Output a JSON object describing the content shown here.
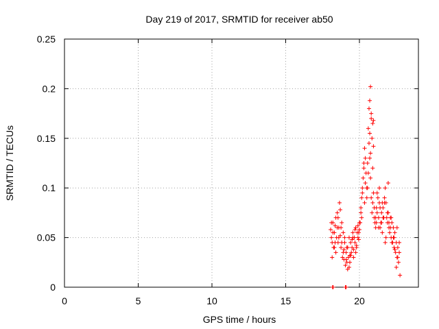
{
  "chart_data": {
    "type": "scatter",
    "title": "Day 219 of 2017, SRMTID for receiver ab50",
    "xlabel": "GPS time / hours",
    "ylabel": "SRMTID / TECUs",
    "xlim": [
      0,
      24
    ],
    "ylim": [
      0,
      0.25
    ],
    "xticks": [
      0,
      5,
      10,
      15,
      20
    ],
    "xtick_labels": [
      "0",
      "5",
      "10",
      "15",
      "20"
    ],
    "yticks": [
      0,
      0.05,
      0.1,
      0.15,
      0.2,
      0.25
    ],
    "ytick_labels": [
      "0",
      "0.05",
      "0.1",
      "0.15",
      "0.2",
      "0.25"
    ],
    "grid": true,
    "marker": "+",
    "color": "#ff0000",
    "series": [
      {
        "name": "SRMTID",
        "x": [
          18.05,
          18.1,
          18.15,
          18.2,
          18.25,
          18.3,
          18.35,
          18.4,
          18.45,
          18.5,
          18.55,
          18.6,
          18.65,
          18.7,
          18.75,
          18.8,
          18.85,
          18.9,
          18.95,
          19.0,
          19.05,
          19.1,
          19.15,
          19.2,
          19.25,
          19.3,
          19.35,
          19.4,
          19.45,
          19.5,
          19.55,
          19.6,
          19.65,
          19.7,
          19.75,
          19.8,
          19.85,
          19.9,
          19.95,
          20.0,
          20.05,
          20.1,
          20.15,
          20.2,
          20.25,
          20.3,
          20.35,
          20.4,
          20.45,
          20.5,
          20.55,
          20.6,
          20.65,
          20.7,
          20.75,
          20.8,
          20.85,
          20.9,
          20.95,
          21.0,
          21.05,
          21.1,
          21.15,
          21.2,
          21.25,
          21.3,
          21.35,
          21.4,
          21.45,
          21.5,
          21.55,
          21.6,
          21.65,
          21.7,
          21.75,
          21.8,
          21.85,
          21.9,
          21.95,
          22.0,
          22.05,
          22.1,
          22.15,
          22.2,
          22.25,
          22.3,
          22.35,
          22.4,
          22.45,
          22.5,
          22.55,
          22.6,
          22.65,
          22.7,
          18.1,
          18.2,
          18.3,
          18.4,
          18.5,
          18.6,
          18.7,
          18.8,
          18.9,
          19.0,
          19.1,
          19.2,
          19.3,
          19.4,
          19.5,
          19.6,
          19.7,
          19.8,
          19.9,
          20.0,
          20.1,
          20.2,
          20.3,
          20.4,
          20.5,
          20.6,
          20.7,
          20.8,
          20.9,
          21.0,
          21.1,
          21.2,
          21.3,
          21.4,
          21.5,
          21.6,
          21.7,
          21.8,
          21.9,
          22.0,
          22.1,
          22.2,
          22.3,
          22.4,
          22.5,
          22.6,
          22.7,
          18.15,
          18.35,
          18.55,
          18.75,
          18.95,
          19.15,
          19.35,
          19.55,
          19.75,
          19.95,
          20.15,
          20.35,
          20.55,
          20.75,
          20.95,
          21.15,
          21.35,
          21.55,
          21.75,
          21.95,
          22.15,
          22.35,
          22.55,
          22.75,
          20.65,
          20.7,
          20.75,
          20.8,
          20.85,
          20.9,
          20.95,
          18.18,
          18.22,
          19.05,
          19.1
        ],
        "y": [
          0.058,
          0.05,
          0.045,
          0.065,
          0.04,
          0.055,
          0.062,
          0.035,
          0.05,
          0.075,
          0.045,
          0.06,
          0.085,
          0.052,
          0.04,
          0.065,
          0.03,
          0.055,
          0.028,
          0.045,
          0.022,
          0.035,
          0.04,
          0.018,
          0.03,
          0.05,
          0.025,
          0.045,
          0.035,
          0.04,
          0.055,
          0.038,
          0.05,
          0.045,
          0.06,
          0.042,
          0.055,
          0.062,
          0.048,
          0.058,
          0.065,
          0.075,
          0.09,
          0.095,
          0.11,
          0.12,
          0.14,
          0.13,
          0.115,
          0.1,
          0.125,
          0.16,
          0.145,
          0.13,
          0.11,
          0.09,
          0.075,
          0.085,
          0.095,
          0.07,
          0.065,
          0.06,
          0.08,
          0.075,
          0.09,
          0.07,
          0.085,
          0.06,
          0.065,
          0.075,
          0.055,
          0.08,
          0.07,
          0.09,
          0.1,
          0.085,
          0.07,
          0.065,
          0.075,
          0.06,
          0.055,
          0.07,
          0.05,
          0.065,
          0.045,
          0.06,
          0.04,
          0.055,
          0.035,
          0.045,
          0.03,
          0.04,
          0.025,
          0.035,
          0.065,
          0.055,
          0.04,
          0.07,
          0.06,
          0.05,
          0.078,
          0.045,
          0.035,
          0.05,
          0.028,
          0.04,
          0.02,
          0.032,
          0.048,
          0.03,
          0.058,
          0.04,
          0.05,
          0.065,
          0.08,
          0.1,
          0.125,
          0.105,
          0.09,
          0.115,
          0.155,
          0.175,
          0.12,
          0.08,
          0.07,
          0.095,
          0.06,
          0.08,
          0.065,
          0.07,
          0.085,
          0.05,
          0.075,
          0.065,
          0.06,
          0.045,
          0.05,
          0.038,
          0.02,
          0.03,
          0.045,
          0.03,
          0.045,
          0.07,
          0.06,
          0.038,
          0.025,
          0.032,
          0.05,
          0.035,
          0.055,
          0.07,
          0.085,
          0.1,
          0.135,
          0.168,
          0.065,
          0.1,
          0.085,
          0.045,
          0.105,
          0.07,
          0.05,
          0.06,
          0.012,
          0.18,
          0.188,
          0.202,
          0.17,
          0.15,
          0.165,
          0.142,
          0.0,
          0.0,
          0.0,
          0.0
        ]
      }
    ]
  }
}
